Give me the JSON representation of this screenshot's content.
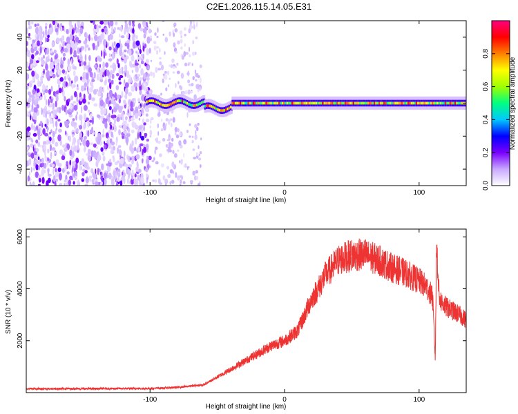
{
  "title": "C2E1.2026.115.14.05.E31",
  "chart_data": [
    {
      "type": "heatmap",
      "name": "spectrogram",
      "xlabel": "Height of straight line (km)",
      "ylabel": "Frequency (Hz)",
      "xlim": [
        -192,
        135
      ],
      "ylim": [
        -50,
        50
      ],
      "xticks": [
        -100,
        0,
        100
      ],
      "xtick_labels": [
        "-100",
        "0",
        "100"
      ],
      "yticks": [
        -40,
        -20,
        0,
        20,
        40
      ],
      "ytick_labels": [
        "-40",
        "-20",
        "0",
        "20",
        "40"
      ],
      "colorbar": {
        "label": "Normalized spectral amplitude",
        "range": [
          0,
          1
        ],
        "ticks": [
          0.0,
          0.2,
          0.4,
          0.6,
          0.8
        ],
        "tick_labels": [
          "0.0",
          "0.2",
          "0.4",
          "0.6",
          "0.8"
        ],
        "colors": [
          "#ffffff",
          "#c8a8ff",
          "#7a00ff",
          "#0000ff",
          "#00c8ff",
          "#00ff80",
          "#a0ff00",
          "#ffff00",
          "#ff8000",
          "#ff0000",
          "#ff0080"
        ]
      },
      "regions": [
        {
          "x": [
            -192,
            -100
          ],
          "description_value": 0.15
        },
        {
          "x": [
            -100,
            -62
          ],
          "description_value": 0.08
        },
        {
          "x": [
            -103,
            135
          ],
          "band_center_hz": 0,
          "band_halfwidth_hz": 3,
          "peak": 0.9
        }
      ]
    },
    {
      "type": "line",
      "name": "snr",
      "xlabel": "Height of straight line (km)",
      "ylabel": "SNR (10 * v/v)",
      "xlim": [
        -192,
        135
      ],
      "ylim": [
        0,
        6300
      ],
      "xticks": [
        -100,
        0,
        100
      ],
      "xtick_labels": [
        "-100",
        "0",
        "100"
      ],
      "yticks": [
        2000,
        4000,
        6000
      ],
      "ytick_labels": [
        "2000",
        "4000",
        "6000"
      ],
      "color": "#ee3333",
      "x": [
        -192,
        -150,
        -100,
        -80,
        -60,
        -50,
        -40,
        -30,
        -20,
        -10,
        0,
        10,
        15,
        20,
        25,
        30,
        40,
        50,
        60,
        70,
        80,
        90,
        100,
        105,
        110,
        112,
        113,
        115,
        120,
        130,
        135
      ],
      "y": [
        150,
        150,
        160,
        200,
        300,
        600,
        900,
        1200,
        1500,
        1800,
        2000,
        2400,
        3000,
        3600,
        4000,
        4500,
        5100,
        5300,
        5300,
        5100,
        4800,
        4600,
        4300,
        4100,
        3700,
        1300,
        5800,
        3600,
        3300,
        3000,
        2800
      ]
    }
  ]
}
